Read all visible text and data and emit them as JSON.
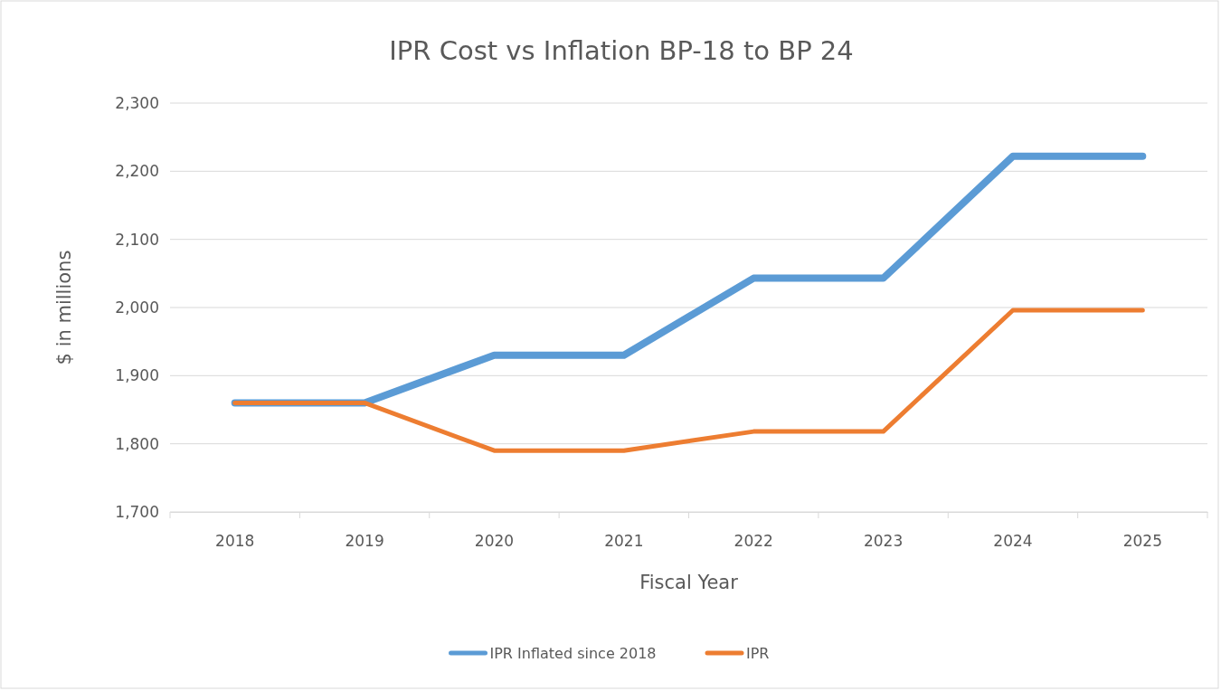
{
  "chart_data": {
    "type": "line",
    "title": "IPR Cost vs Inflation BP-18 to BP 24",
    "xlabel": "Fiscal Year",
    "ylabel": "$ in millions",
    "categories": [
      "2018",
      "2019",
      "2020",
      "2021",
      "2022",
      "2023",
      "2024",
      "2025"
    ],
    "series": [
      {
        "name": "IPR Inflated since 2018",
        "color": "#5b9bd5",
        "values": [
          1860,
          1860,
          1930,
          1930,
          2043,
          2043,
          2222,
          2222
        ]
      },
      {
        "name": "IPR",
        "color": "#ed7d31",
        "values": [
          1860,
          1860,
          1790,
          1790,
          1818,
          1818,
          1996,
          1996
        ]
      }
    ],
    "ylim": [
      1700,
      2300
    ],
    "yticks": [
      {
        "value": 1700,
        "label": "1,700"
      },
      {
        "value": 1800,
        "label": "1,800"
      },
      {
        "value": 1900,
        "label": "1,900"
      },
      {
        "value": 2000,
        "label": "2,000"
      },
      {
        "value": 2100,
        "label": "2,100"
      },
      {
        "value": 2200,
        "label": "2,200"
      },
      {
        "value": 2300,
        "label": "2,300"
      }
    ],
    "grid": "y",
    "legend": "bottom",
    "marker": "none",
    "line_style": "solid"
  }
}
